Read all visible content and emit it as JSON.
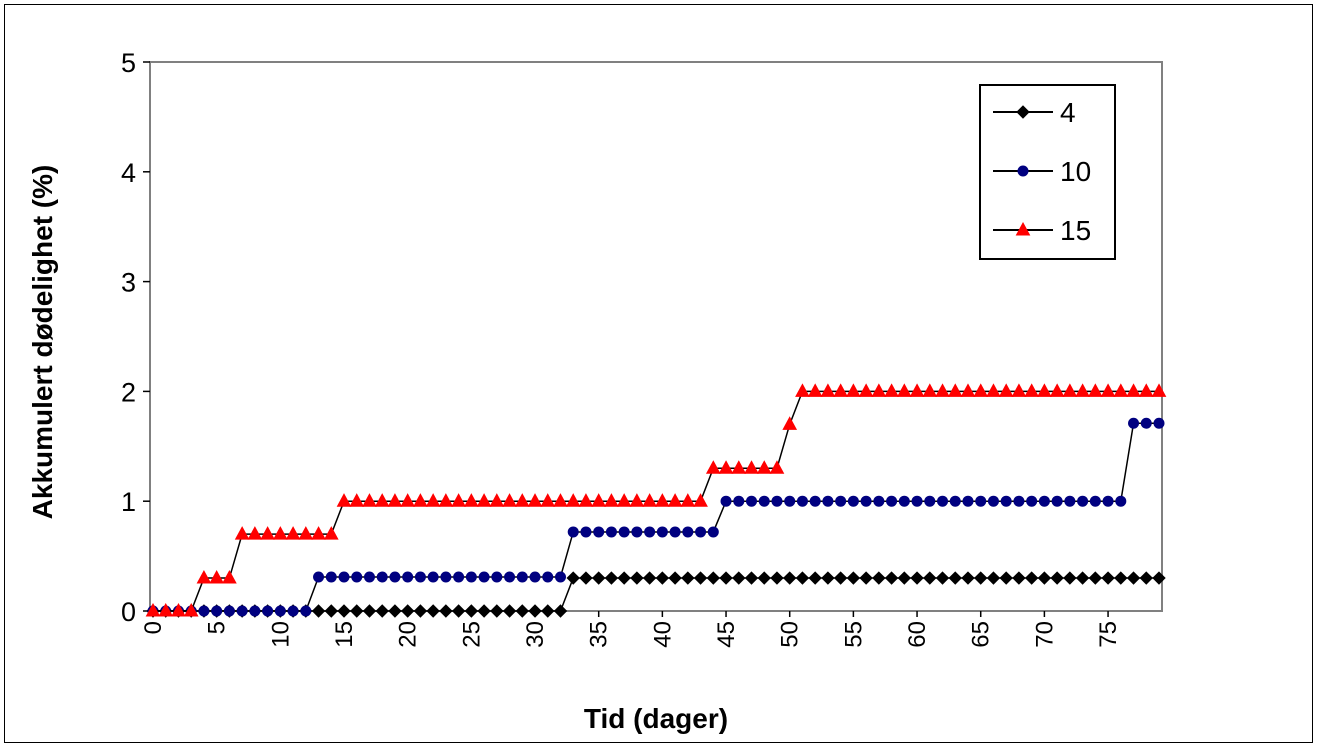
{
  "chart_data": {
    "type": "line",
    "title": "",
    "xlabel": "Tid (dager)",
    "ylabel": "Akkumulert dødelighet (%)",
    "ylim": [
      0,
      5
    ],
    "yticks": [
      "0",
      "1",
      "2",
      "3",
      "4",
      "5"
    ],
    "xlim": [
      0,
      79
    ],
    "xticks": [
      "0",
      "5",
      "10",
      "15",
      "20",
      "25",
      "30",
      "35",
      "40",
      "45",
      "50",
      "55",
      "60",
      "65",
      "70",
      "75"
    ],
    "legend_position": "top-right",
    "grid": false,
    "series": [
      {
        "name": "4",
        "color": "#000000",
        "marker": "diamond",
        "x": [
          0,
          1,
          2,
          3,
          4,
          5,
          6,
          7,
          8,
          9,
          10,
          11,
          12,
          13,
          14,
          15,
          16,
          17,
          18,
          19,
          20,
          21,
          22,
          23,
          24,
          25,
          26,
          27,
          28,
          29,
          30,
          31,
          32,
          33,
          34,
          35,
          36,
          37,
          38,
          39,
          40,
          41,
          42,
          43,
          44,
          45,
          46,
          47,
          48,
          49,
          50,
          51,
          52,
          53,
          54,
          55,
          56,
          57,
          58,
          59,
          60,
          61,
          62,
          63,
          64,
          65,
          66,
          67,
          68,
          69,
          70,
          71,
          72,
          73,
          74,
          75,
          76,
          77,
          78,
          79
        ],
        "values": [
          0,
          0,
          0,
          0,
          0,
          0,
          0,
          0,
          0,
          0,
          0,
          0,
          0,
          0,
          0,
          0,
          0,
          0,
          0,
          0,
          0,
          0,
          0,
          0,
          0,
          0,
          0,
          0,
          0,
          0,
          0,
          0,
          0,
          0.3,
          0.3,
          0.3,
          0.3,
          0.3,
          0.3,
          0.3,
          0.3,
          0.3,
          0.3,
          0.3,
          0.3,
          0.3,
          0.3,
          0.3,
          0.3,
          0.3,
          0.3,
          0.3,
          0.3,
          0.3,
          0.3,
          0.3,
          0.3,
          0.3,
          0.3,
          0.3,
          0.3,
          0.3,
          0.3,
          0.3,
          0.3,
          0.3,
          0.3,
          0.3,
          0.3,
          0.3,
          0.3,
          0.3,
          0.3,
          0.3,
          0.3,
          0.3,
          0.3,
          0.3,
          0.3,
          0.3
        ]
      },
      {
        "name": "10",
        "color": "#000080",
        "marker": "circle",
        "x": [
          0,
          1,
          2,
          3,
          4,
          5,
          6,
          7,
          8,
          9,
          10,
          11,
          12,
          13,
          14,
          15,
          16,
          17,
          18,
          19,
          20,
          21,
          22,
          23,
          24,
          25,
          26,
          27,
          28,
          29,
          30,
          31,
          32,
          33,
          34,
          35,
          36,
          37,
          38,
          39,
          40,
          41,
          42,
          43,
          44,
          45,
          46,
          47,
          48,
          49,
          50,
          51,
          52,
          53,
          54,
          55,
          56,
          57,
          58,
          59,
          60,
          61,
          62,
          63,
          64,
          65,
          66,
          67,
          68,
          69,
          70,
          71,
          72,
          73,
          74,
          75,
          76,
          77,
          78,
          79
        ],
        "values": [
          0,
          0,
          0,
          0,
          0,
          0,
          0,
          0,
          0,
          0,
          0,
          0,
          0,
          0.31,
          0.31,
          0.31,
          0.31,
          0.31,
          0.31,
          0.31,
          0.31,
          0.31,
          0.31,
          0.31,
          0.31,
          0.31,
          0.31,
          0.31,
          0.31,
          0.31,
          0.31,
          0.31,
          0.31,
          0.72,
          0.72,
          0.72,
          0.72,
          0.72,
          0.72,
          0.72,
          0.72,
          0.72,
          0.72,
          0.72,
          0.72,
          1,
          1,
          1,
          1,
          1,
          1,
          1,
          1,
          1,
          1,
          1,
          1,
          1,
          1,
          1,
          1,
          1,
          1,
          1,
          1,
          1,
          1,
          1,
          1,
          1,
          1,
          1,
          1,
          1,
          1,
          1,
          1,
          1.71,
          1.71,
          1.71
        ]
      },
      {
        "name": "15",
        "color": "#ff0000",
        "marker": "triangle",
        "x": [
          0,
          1,
          2,
          3,
          4,
          5,
          6,
          7,
          8,
          9,
          10,
          11,
          12,
          13,
          14,
          15,
          16,
          17,
          18,
          19,
          20,
          21,
          22,
          23,
          24,
          25,
          26,
          27,
          28,
          29,
          30,
          31,
          32,
          33,
          34,
          35,
          36,
          37,
          38,
          39,
          40,
          41,
          42,
          43,
          44,
          45,
          46,
          47,
          48,
          49,
          50,
          51,
          52,
          53,
          54,
          55,
          56,
          57,
          58,
          59,
          60,
          61,
          62,
          63,
          64,
          65,
          66,
          67,
          68,
          69,
          70,
          71,
          72,
          73,
          74,
          75,
          76,
          77,
          78,
          79
        ],
        "values": [
          0,
          0,
          0,
          0,
          0.3,
          0.3,
          0.3,
          0.7,
          0.7,
          0.7,
          0.7,
          0.7,
          0.7,
          0.7,
          0.7,
          1,
          1,
          1,
          1,
          1,
          1,
          1,
          1,
          1,
          1,
          1,
          1,
          1,
          1,
          1,
          1,
          1,
          1,
          1,
          1,
          1,
          1,
          1,
          1,
          1,
          1,
          1,
          1,
          1,
          1.3,
          1.3,
          1.3,
          1.3,
          1.3,
          1.3,
          1.7,
          2,
          2,
          2,
          2,
          2,
          2,
          2,
          2,
          2,
          2,
          2,
          2,
          2,
          2,
          2,
          2,
          2,
          2,
          2,
          2,
          2,
          2,
          2,
          2,
          2,
          2,
          2,
          2,
          2
        ]
      }
    ]
  }
}
